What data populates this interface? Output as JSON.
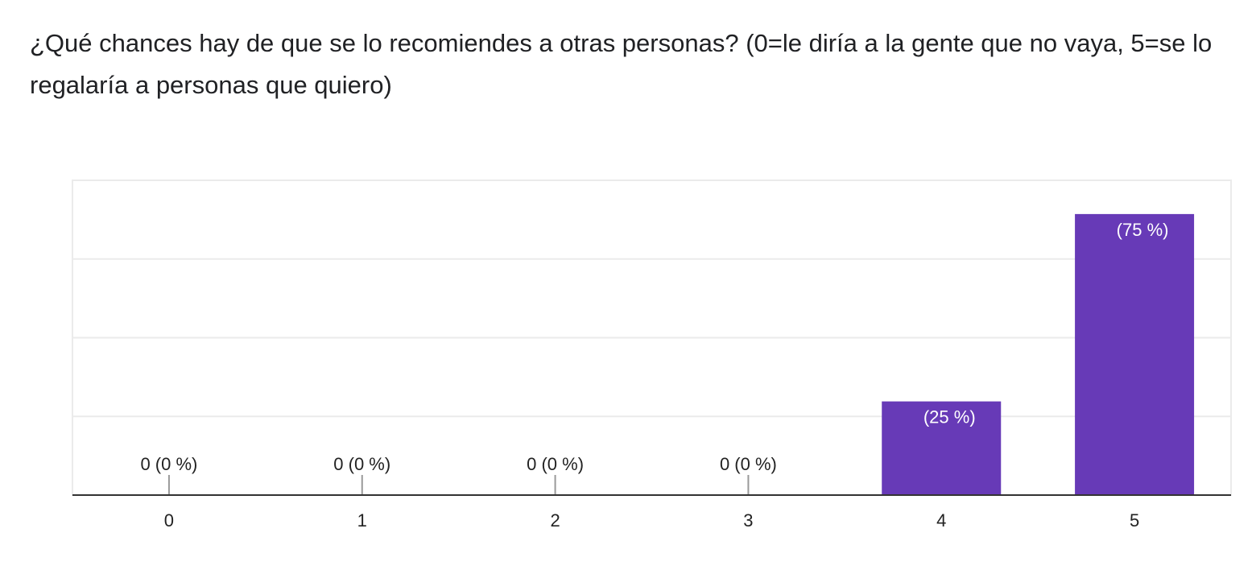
{
  "question": {
    "text": "¿Qué chances hay de que se lo recomiendes a otras personas? (0=le diría a la gente que no vaya, 5=se lo regalaría a personas que quiero)"
  },
  "colors": {
    "bar": "#673ab7",
    "gridline": "#ebebeb",
    "axis": "#333333",
    "zero_marker": "#999999"
  },
  "chart_data": {
    "type": "bar",
    "title": "¿Qué chances hay de que se lo recomiendes a otras personas? (0=le diría a la gente que no vaya, 5=se lo regalaría a personas que quiero)",
    "categories": [
      "0",
      "1",
      "2",
      "3",
      "4",
      "5"
    ],
    "values": [
      0,
      0,
      0,
      0,
      25,
      75
    ],
    "value_unit": "percent of responses",
    "data_labels": [
      "0 (0 %)",
      "0 (0 %)",
      "0 (0 %)",
      "0 (0 %)",
      "(25 %)",
      "(75 %)"
    ],
    "ylim": [
      0,
      84
    ],
    "grid": true,
    "y_tick_labels_shown": false,
    "legend": "none"
  }
}
